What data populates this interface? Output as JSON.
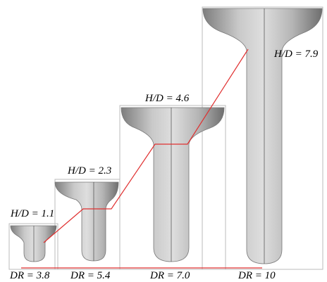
{
  "vessels": [
    {
      "hd_label": "H/D = 1.1",
      "dr_label": "DR = 3.8"
    },
    {
      "hd_label": "H/D = 2.3",
      "dr_label": "DR = 5.4"
    },
    {
      "hd_label": "H/D = 4.6",
      "dr_label": "DR = 7.0"
    },
    {
      "hd_label": "H/D = 7.9",
      "dr_label": "DR = 10"
    }
  ]
}
